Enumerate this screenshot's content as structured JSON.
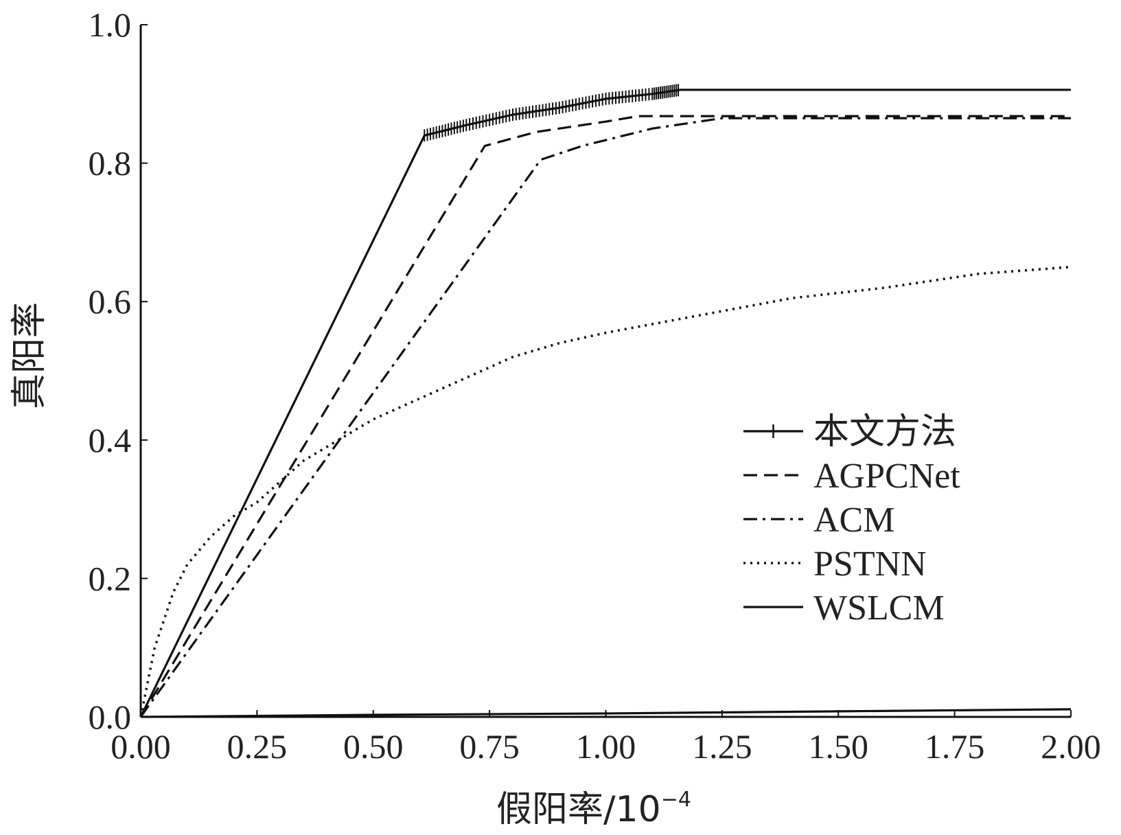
{
  "chart_data": {
    "type": "line",
    "xlabel": "假阳率/10",
    "xlabel_exponent": "−4",
    "ylabel": "真阳率",
    "xlim": [
      0,
      2.0
    ],
    "ylim": [
      0,
      1.0
    ],
    "x_ticks": [
      "0.00",
      "0.25",
      "0.50",
      "0.75",
      "1.00",
      "1.25",
      "1.50",
      "1.75",
      "2.00"
    ],
    "y_ticks": [
      "0.0",
      "0.2",
      "0.4",
      "0.6",
      "0.8",
      "1.0"
    ],
    "legend_position": "right-middle",
    "grid": false,
    "series": [
      {
        "name": "本文方法",
        "style": "solid-plus",
        "points": [
          [
            0,
            0
          ],
          [
            0.61,
            0.84
          ],
          [
            0.7,
            0.855
          ],
          [
            0.8,
            0.87
          ],
          [
            0.9,
            0.88
          ],
          [
            1.0,
            0.893
          ],
          [
            1.1,
            0.9
          ],
          [
            1.16,
            0.906
          ],
          [
            2.0,
            0.906
          ]
        ]
      },
      {
        "name": "AGPCNet",
        "style": "dashed",
        "points": [
          [
            0,
            0
          ],
          [
            0.74,
            0.825
          ],
          [
            0.85,
            0.845
          ],
          [
            1.0,
            0.86
          ],
          [
            1.07,
            0.868
          ],
          [
            2.0,
            0.868
          ]
        ]
      },
      {
        "name": "ACM",
        "style": "dashdot",
        "points": [
          [
            0,
            0
          ],
          [
            0.86,
            0.805
          ],
          [
            0.95,
            0.825
          ],
          [
            1.1,
            0.85
          ],
          [
            1.25,
            0.865
          ],
          [
            2.0,
            0.865
          ]
        ]
      },
      {
        "name": "PSTNN",
        "style": "dotted",
        "points": [
          [
            0,
            0
          ],
          [
            0.03,
            0.1
          ],
          [
            0.07,
            0.18
          ],
          [
            0.1,
            0.22
          ],
          [
            0.15,
            0.26
          ],
          [
            0.2,
            0.29
          ],
          [
            0.25,
            0.31
          ],
          [
            0.3,
            0.34
          ],
          [
            0.35,
            0.37
          ],
          [
            0.45,
            0.41
          ],
          [
            0.5,
            0.43
          ],
          [
            0.6,
            0.46
          ],
          [
            0.7,
            0.49
          ],
          [
            0.8,
            0.52
          ],
          [
            0.9,
            0.54
          ],
          [
            1.0,
            0.555
          ],
          [
            1.2,
            0.58
          ],
          [
            1.4,
            0.605
          ],
          [
            1.6,
            0.62
          ],
          [
            1.8,
            0.64
          ],
          [
            2.0,
            0.65
          ]
        ]
      },
      {
        "name": "WSLCM",
        "style": "solid",
        "points": [
          [
            0,
            0
          ],
          [
            0.5,
            0.003
          ],
          [
            1.0,
            0.005
          ],
          [
            1.5,
            0.008
          ],
          [
            2.0,
            0.011
          ]
        ]
      }
    ]
  }
}
